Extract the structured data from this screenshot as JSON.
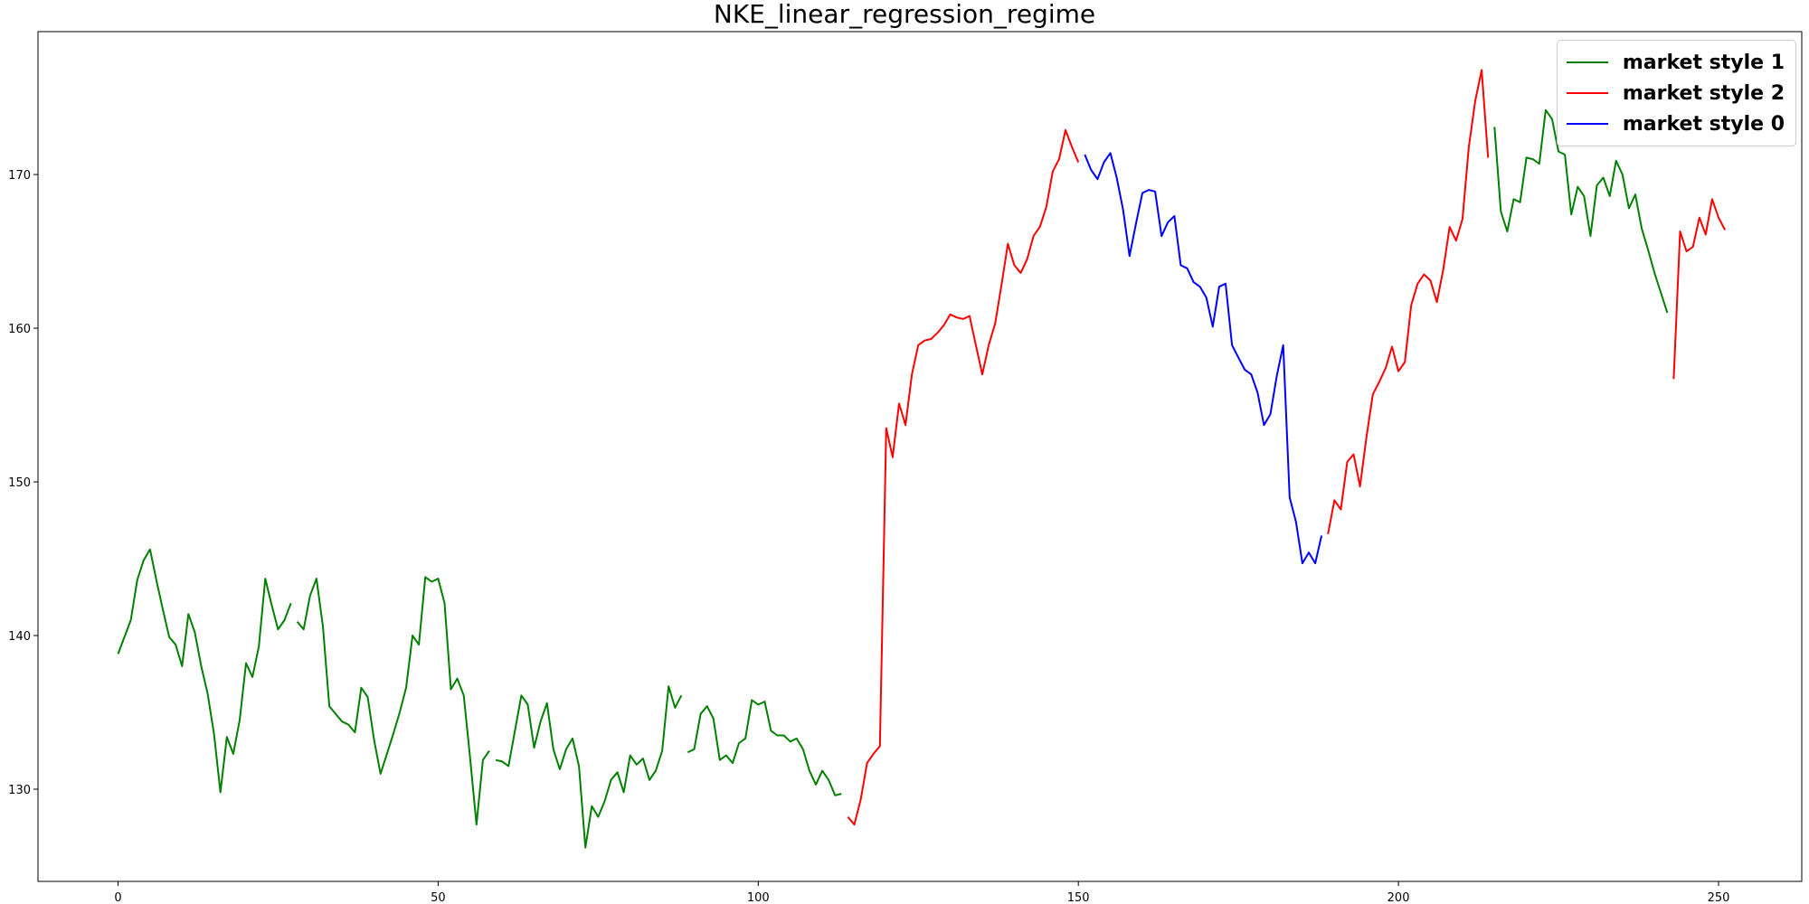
{
  "chart_data": {
    "type": "line",
    "title": "NKE_linear_regression_regime",
    "xlabel": "",
    "ylabel": "",
    "xlim": [
      -12.5,
      263
    ],
    "ylim": [
      124,
      179.3
    ],
    "xticks": [
      0,
      50,
      100,
      150,
      200,
      250
    ],
    "yticks": [
      130,
      140,
      150,
      160,
      170
    ],
    "grid": false,
    "legend_position": "top-right",
    "legend": [
      {
        "name": "market style 1",
        "color": "#008000"
      },
      {
        "name": "market style 2",
        "color": "#ff0000"
      },
      {
        "name": "market style 0",
        "color": "#0000ff"
      }
    ],
    "segments": [
      {
        "series": "market style 1",
        "points": [
          [
            0,
            138.8
          ],
          [
            2,
            141.0
          ],
          [
            3,
            143.6
          ],
          [
            4,
            144.9
          ],
          [
            5,
            145.6
          ],
          [
            6,
            143.6
          ],
          [
            7,
            141.7
          ],
          [
            8,
            139.9
          ],
          [
            9,
            139.4
          ],
          [
            10,
            138.0
          ],
          [
            11,
            141.4
          ],
          [
            12,
            140.2
          ],
          [
            13,
            138.0
          ],
          [
            14,
            136.2
          ],
          [
            15,
            133.6
          ],
          [
            16,
            129.8
          ],
          [
            17,
            133.4
          ],
          [
            18,
            132.3
          ],
          [
            19,
            134.5
          ],
          [
            20,
            138.2
          ],
          [
            21,
            137.3
          ],
          [
            22,
            139.3
          ],
          [
            23,
            143.7
          ],
          [
            24,
            142.0
          ],
          [
            25,
            140.4
          ],
          [
            26,
            141.0
          ],
          [
            27,
            142.1
          ]
        ]
      },
      {
        "series": "market style 1",
        "points": [
          [
            28,
            140.9
          ],
          [
            29,
            140.4
          ],
          [
            30,
            142.6
          ],
          [
            31,
            143.7
          ],
          [
            32,
            140.6
          ],
          [
            33,
            135.4
          ],
          [
            34,
            134.9
          ],
          [
            35,
            134.4
          ],
          [
            36,
            134.2
          ],
          [
            37,
            133.7
          ],
          [
            38,
            136.6
          ],
          [
            39,
            136.0
          ],
          [
            40,
            133.2
          ],
          [
            41,
            131.0
          ],
          [
            42,
            132.3
          ],
          [
            43,
            133.6
          ],
          [
            44,
            135.0
          ],
          [
            45,
            136.6
          ],
          [
            46,
            140.0
          ],
          [
            47,
            139.4
          ],
          [
            48,
            143.8
          ],
          [
            49,
            143.5
          ],
          [
            50,
            143.7
          ],
          [
            51,
            142.1
          ],
          [
            52,
            136.5
          ],
          [
            53,
            137.2
          ],
          [
            54,
            136.1
          ],
          [
            55,
            132.0
          ],
          [
            56,
            127.7
          ],
          [
            57,
            131.9
          ],
          [
            58,
            132.5
          ]
        ]
      },
      {
        "series": "market style 1",
        "points": [
          [
            59,
            131.9
          ],
          [
            60,
            131.8
          ],
          [
            61,
            131.5
          ],
          [
            62,
            133.8
          ],
          [
            63,
            136.1
          ],
          [
            64,
            135.5
          ],
          [
            65,
            132.7
          ],
          [
            66,
            134.4
          ],
          [
            67,
            135.6
          ],
          [
            68,
            132.6
          ],
          [
            69,
            131.3
          ],
          [
            70,
            132.6
          ],
          [
            71,
            133.3
          ],
          [
            72,
            131.5
          ],
          [
            73,
            126.2
          ],
          [
            74,
            128.9
          ],
          [
            75,
            128.2
          ],
          [
            76,
            129.2
          ],
          [
            77,
            130.6
          ],
          [
            78,
            131.1
          ],
          [
            79,
            129.8
          ],
          [
            80,
            132.2
          ],
          [
            81,
            131.6
          ],
          [
            82,
            132.0
          ],
          [
            83,
            130.6
          ],
          [
            84,
            131.2
          ],
          [
            85,
            132.5
          ],
          [
            86,
            136.7
          ],
          [
            87,
            135.3
          ],
          [
            88,
            136.1
          ]
        ]
      },
      {
        "series": "market style 1",
        "points": [
          [
            89,
            132.4
          ],
          [
            90,
            132.6
          ],
          [
            91,
            134.9
          ],
          [
            92,
            135.4
          ],
          [
            93,
            134.6
          ],
          [
            94,
            131.9
          ],
          [
            95,
            132.2
          ],
          [
            96,
            131.7
          ],
          [
            97,
            133.0
          ],
          [
            98,
            133.3
          ],
          [
            99,
            135.8
          ],
          [
            100,
            135.5
          ],
          [
            101,
            135.7
          ],
          [
            102,
            133.8
          ],
          [
            103,
            133.5
          ],
          [
            104,
            133.5
          ],
          [
            105,
            133.1
          ],
          [
            106,
            133.3
          ],
          [
            107,
            132.6
          ],
          [
            108,
            131.2
          ],
          [
            109,
            130.3
          ],
          [
            110,
            131.2
          ],
          [
            111,
            130.6
          ],
          [
            112,
            129.6
          ],
          [
            113,
            129.7
          ]
        ]
      },
      {
        "series": "market style 2",
        "points": [
          [
            114,
            128.2
          ],
          [
            115,
            127.7
          ],
          [
            116,
            129.3
          ],
          [
            117,
            131.7
          ],
          [
            118,
            132.3
          ],
          [
            119,
            132.8
          ],
          [
            120,
            153.5
          ],
          [
            121,
            151.6
          ],
          [
            122,
            155.1
          ],
          [
            123,
            153.7
          ],
          [
            124,
            157.0
          ],
          [
            125,
            158.9
          ],
          [
            126,
            159.2
          ],
          [
            127,
            159.3
          ],
          [
            128,
            159.7
          ],
          [
            129,
            160.2
          ],
          [
            130,
            160.9
          ],
          [
            131,
            160.7
          ],
          [
            132,
            160.6
          ],
          [
            133,
            160.8
          ],
          [
            134,
            158.9
          ],
          [
            135,
            157.0
          ],
          [
            136,
            158.9
          ],
          [
            137,
            160.3
          ],
          [
            138,
            162.8
          ],
          [
            139,
            165.5
          ],
          [
            140,
            164.1
          ],
          [
            141,
            163.6
          ],
          [
            142,
            164.5
          ],
          [
            143,
            166.0
          ],
          [
            144,
            166.6
          ],
          [
            145,
            167.9
          ],
          [
            146,
            170.2
          ],
          [
            147,
            171.0
          ],
          [
            148,
            172.9
          ],
          [
            149,
            171.8
          ],
          [
            150,
            170.8
          ]
        ]
      },
      {
        "series": "market style 0",
        "points": [
          [
            151,
            171.3
          ],
          [
            152,
            170.3
          ],
          [
            153,
            169.7
          ],
          [
            154,
            170.8
          ],
          [
            155,
            171.4
          ],
          [
            156,
            169.8
          ],
          [
            157,
            167.7
          ],
          [
            158,
            164.7
          ],
          [
            159,
            166.8
          ],
          [
            160,
            168.8
          ],
          [
            161,
            169.0
          ],
          [
            162,
            168.9
          ],
          [
            163,
            166.0
          ],
          [
            164,
            166.9
          ],
          [
            165,
            167.3
          ],
          [
            166,
            164.1
          ],
          [
            167,
            163.9
          ],
          [
            168,
            163.0
          ],
          [
            169,
            162.7
          ],
          [
            170,
            162.0
          ],
          [
            171,
            160.1
          ],
          [
            172,
            162.7
          ],
          [
            173,
            162.9
          ],
          [
            174,
            158.9
          ],
          [
            175,
            158.1
          ],
          [
            176,
            157.3
          ],
          [
            177,
            157.0
          ],
          [
            178,
            155.8
          ],
          [
            179,
            153.7
          ],
          [
            180,
            154.4
          ],
          [
            181,
            156.9
          ],
          [
            182,
            158.9
          ],
          [
            183,
            149.0
          ],
          [
            184,
            147.4
          ],
          [
            185,
            144.7
          ],
          [
            186,
            145.4
          ],
          [
            187,
            144.7
          ],
          [
            188,
            146.5
          ]
        ]
      },
      {
        "series": "market style 2",
        "points": [
          [
            189,
            146.6
          ],
          [
            190,
            148.8
          ],
          [
            191,
            148.2
          ],
          [
            192,
            151.3
          ],
          [
            193,
            151.8
          ],
          [
            194,
            149.7
          ],
          [
            195,
            152.9
          ],
          [
            196,
            155.7
          ],
          [
            197,
            156.5
          ],
          [
            198,
            157.4
          ],
          [
            199,
            158.8
          ],
          [
            200,
            157.2
          ],
          [
            201,
            157.8
          ],
          [
            202,
            161.5
          ],
          [
            203,
            162.9
          ],
          [
            204,
            163.5
          ],
          [
            205,
            163.1
          ],
          [
            206,
            161.7
          ],
          [
            207,
            163.8
          ],
          [
            208,
            166.6
          ],
          [
            209,
            165.7
          ],
          [
            210,
            167.1
          ],
          [
            211,
            171.8
          ],
          [
            212,
            174.8
          ],
          [
            213,
            176.8
          ],
          [
            214,
            171.1
          ]
        ]
      },
      {
        "series": "market style 1",
        "points": [
          [
            215,
            173.1
          ],
          [
            216,
            167.6
          ],
          [
            217,
            166.3
          ],
          [
            218,
            168.4
          ],
          [
            219,
            168.2
          ],
          [
            220,
            171.1
          ],
          [
            221,
            171.0
          ],
          [
            222,
            170.7
          ],
          [
            223,
            174.2
          ],
          [
            224,
            173.6
          ],
          [
            225,
            171.5
          ],
          [
            226,
            171.3
          ],
          [
            227,
            167.4
          ],
          [
            228,
            169.2
          ],
          [
            229,
            168.6
          ],
          [
            230,
            166.0
          ],
          [
            231,
            169.3
          ],
          [
            232,
            169.8
          ],
          [
            233,
            168.6
          ],
          [
            234,
            170.9
          ],
          [
            235,
            170.0
          ],
          [
            236,
            167.8
          ],
          [
            237,
            168.7
          ],
          [
            238,
            166.5
          ],
          [
            239,
            165.1
          ],
          [
            240,
            163.6
          ],
          [
            241,
            162.3
          ],
          [
            242,
            161.0
          ]
        ]
      },
      {
        "series": "market style 2",
        "points": [
          [
            243,
            156.7
          ],
          [
            244,
            166.3
          ],
          [
            245,
            165.0
          ],
          [
            246,
            165.3
          ],
          [
            247,
            167.2
          ],
          [
            248,
            166.1
          ],
          [
            249,
            168.4
          ],
          [
            250,
            167.2
          ],
          [
            251,
            166.4
          ]
        ]
      }
    ]
  }
}
